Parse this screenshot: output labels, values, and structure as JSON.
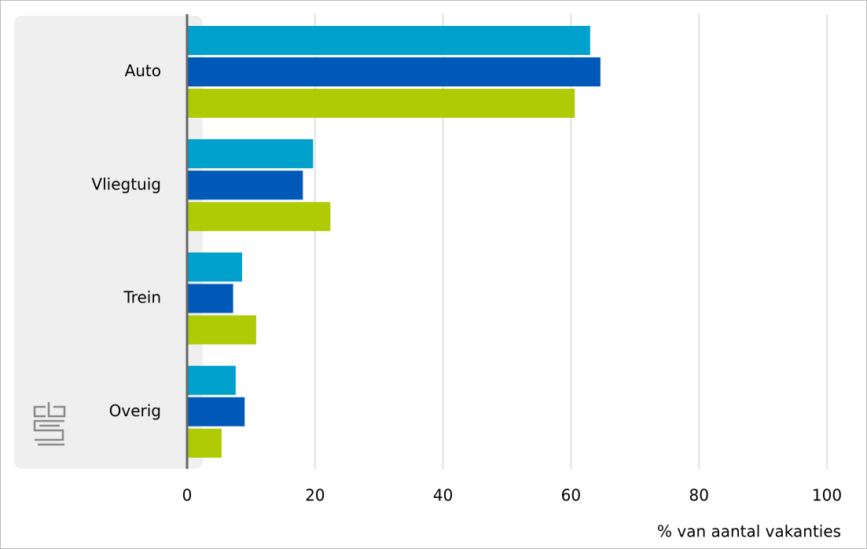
{
  "chart_data": {
    "type": "hbar",
    "categories": [
      "Auto",
      "Vliegtuig",
      "Trein",
      "Overig"
    ],
    "series": [
      {
        "color": "#00a1cd",
        "values": [
          63,
          19.7,
          8.6,
          7.6
        ]
      },
      {
        "color": "#0058b8",
        "values": [
          64.6,
          18.1,
          7.2,
          9.0
        ]
      },
      {
        "color": "#afcb05",
        "values": [
          60.6,
          22.4,
          10.8,
          5.4
        ]
      }
    ],
    "xlim": [
      0,
      100
    ],
    "xticks": [
      0,
      20,
      40,
      60,
      80,
      100
    ],
    "grid": true,
    "xlabel": "% van aantal vakanties"
  }
}
